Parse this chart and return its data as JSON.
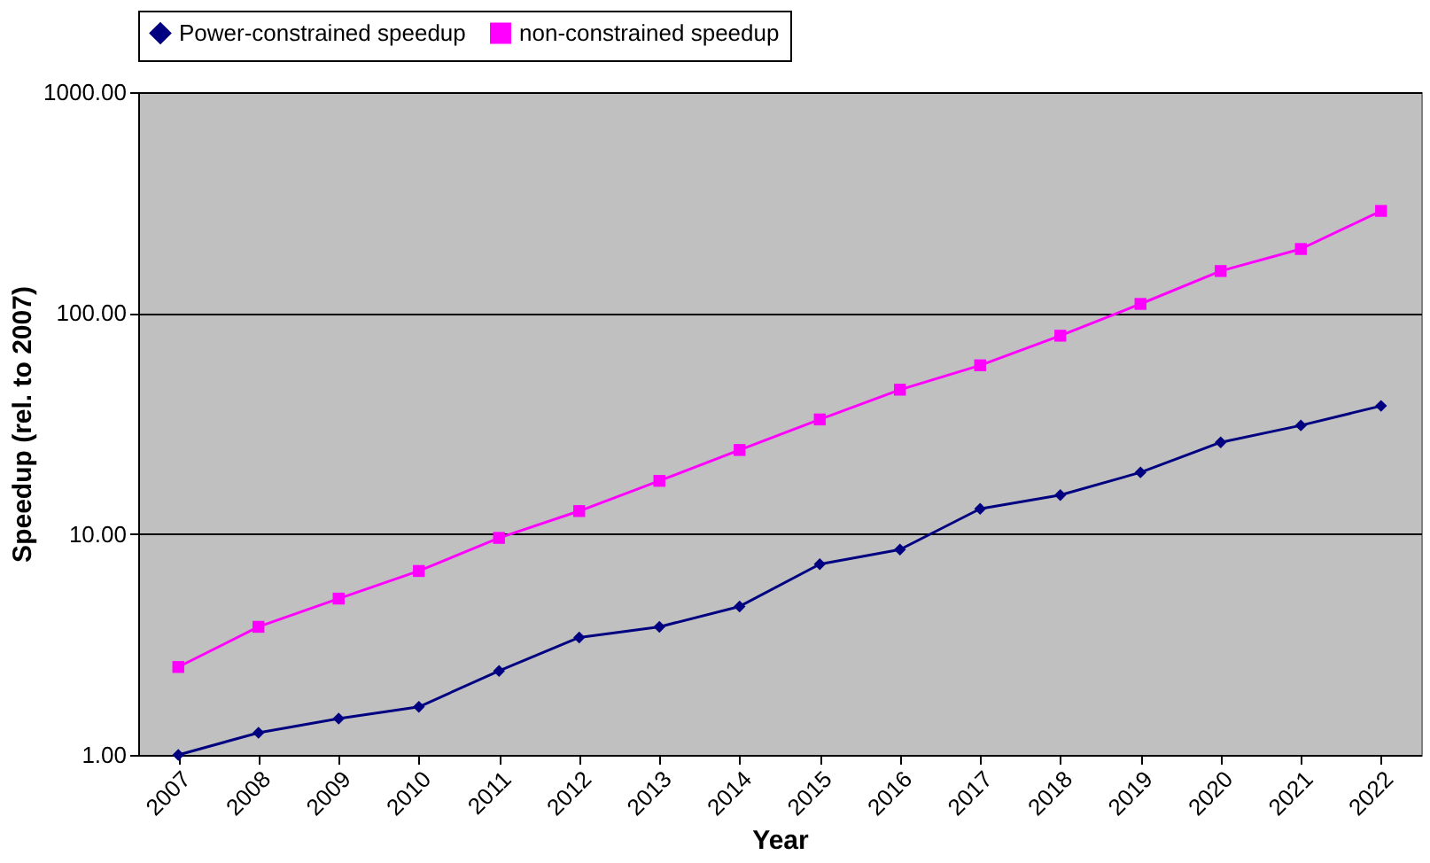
{
  "chart_data": {
    "type": "line",
    "xlabel": "Year",
    "ylabel": "Speedup (rel. to 2007)",
    "categories": [
      "2007",
      "2008",
      "2009",
      "2010",
      "2011",
      "2012",
      "2013",
      "2014",
      "2015",
      "2016",
      "2017",
      "2018",
      "2019",
      "2020",
      "2021",
      "2022"
    ],
    "series": [
      {
        "name": "Power-constrained speedup",
        "color": "#000080",
        "marker": "diamond",
        "values": [
          1.0,
          1.26,
          1.46,
          1.65,
          2.4,
          3.4,
          3.8,
          4.7,
          7.3,
          8.5,
          13,
          15,
          19,
          26,
          31,
          38
        ]
      },
      {
        "name": "non-constrained speedup",
        "color": "#ff00ff",
        "marker": "square",
        "values": [
          2.5,
          3.8,
          5.1,
          6.8,
          9.6,
          12.7,
          17.4,
          24,
          33,
          45,
          58,
          79,
          110,
          155,
          195,
          290
        ]
      }
    ],
    "log": "y",
    "ylim": [
      1,
      1000
    ],
    "yticks": [
      {
        "value": 1,
        "label": "1.00"
      },
      {
        "value": 10,
        "label": "10.00"
      },
      {
        "value": 100,
        "label": "100.00"
      },
      {
        "value": 1000,
        "label": "1000.00"
      }
    ],
    "grid": "y",
    "legend": "top",
    "line_style": "solid"
  }
}
